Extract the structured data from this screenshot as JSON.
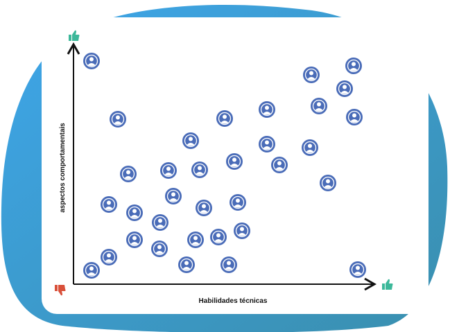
{
  "y_axis_label": "aspectos comportamentais",
  "x_axis_label": "Habilidades técnicas"
}
